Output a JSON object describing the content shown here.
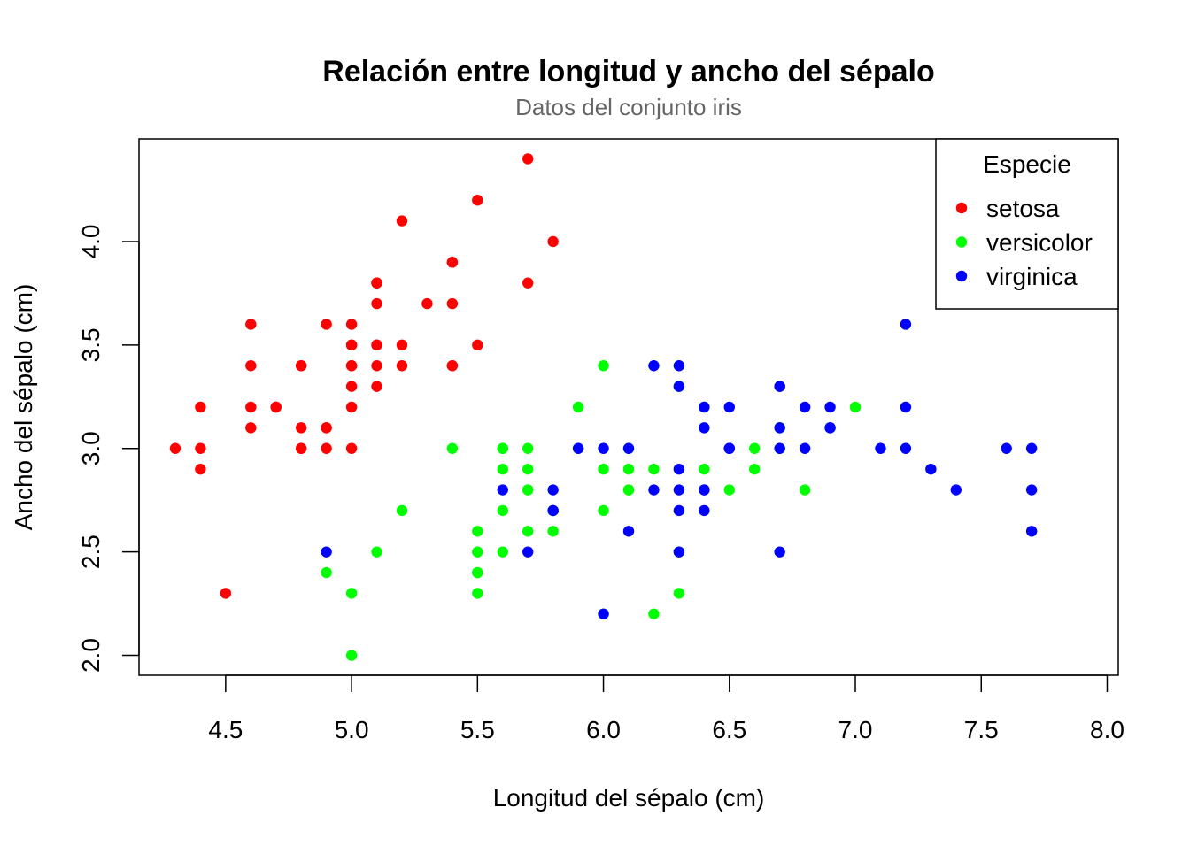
{
  "chart_data": {
    "type": "scatter",
    "title": "Relación entre longitud y ancho del sépalo",
    "subtitle": "Datos del conjunto iris",
    "xlabel": "Longitud del sépalo (cm)",
    "ylabel": "Ancho del sépalo (cm)",
    "xlim": [
      4.156,
      8.044
    ],
    "ylim": [
      1.904,
      4.496
    ],
    "xticks": [
      "4.5",
      "5.0",
      "5.5",
      "6.0",
      "6.5",
      "7.0",
      "7.5",
      "8.0"
    ],
    "yticks": [
      "2.0",
      "2.5",
      "3.0",
      "3.5",
      "4.0"
    ],
    "grid": false,
    "legend": {
      "title": "Especie",
      "placement": "top-right"
    },
    "series": [
      {
        "name": "setosa",
        "color": "#ff0000",
        "x": [
          5.1,
          4.9,
          4.7,
          4.6,
          5.0,
          5.4,
          4.6,
          5.0,
          4.4,
          4.9,
          5.4,
          4.8,
          4.8,
          4.3,
          5.8,
          5.7,
          5.4,
          5.1,
          5.7,
          5.1,
          5.4,
          5.1,
          4.6,
          5.1,
          4.8,
          5.0,
          5.0,
          5.2,
          5.2,
          4.7,
          4.8,
          5.4,
          5.2,
          5.5,
          4.9,
          5.0,
          5.5,
          4.9,
          4.4,
          5.1,
          5.0,
          4.5,
          4.4,
          5.0,
          5.1,
          4.8,
          5.1,
          4.6,
          5.3,
          5.0
        ],
        "y": [
          3.5,
          3.0,
          3.2,
          3.1,
          3.6,
          3.9,
          3.4,
          3.4,
          2.9,
          3.1,
          3.7,
          3.4,
          3.0,
          3.0,
          4.0,
          4.4,
          3.9,
          3.5,
          3.8,
          3.8,
          3.4,
          3.7,
          3.6,
          3.3,
          3.4,
          3.0,
          3.4,
          3.5,
          3.4,
          3.2,
          3.1,
          3.4,
          4.1,
          4.2,
          3.1,
          3.2,
          3.5,
          3.6,
          3.0,
          3.4,
          3.5,
          2.3,
          3.2,
          3.5,
          3.8,
          3.0,
          3.8,
          3.2,
          3.7,
          3.3
        ]
      },
      {
        "name": "versicolor",
        "color": "#00ff00",
        "x": [
          7.0,
          6.4,
          6.9,
          5.5,
          6.5,
          5.7,
          6.3,
          4.9,
          6.6,
          5.2,
          5.0,
          5.9,
          6.0,
          6.1,
          5.6,
          6.7,
          5.6,
          5.8,
          6.2,
          5.6,
          5.9,
          6.1,
          6.3,
          6.1,
          6.4,
          6.6,
          6.8,
          6.7,
          6.0,
          5.7,
          5.5,
          5.5,
          5.8,
          6.0,
          5.4,
          6.0,
          6.7,
          6.3,
          5.6,
          5.5,
          5.5,
          6.1,
          5.8,
          5.0,
          5.6,
          5.7,
          5.7,
          6.2,
          5.1,
          5.7
        ],
        "y": [
          3.2,
          3.2,
          3.1,
          2.3,
          2.8,
          2.8,
          3.3,
          2.4,
          2.9,
          2.7,
          2.0,
          3.0,
          2.2,
          2.9,
          2.9,
          3.1,
          3.0,
          2.7,
          2.2,
          2.5,
          3.2,
          2.8,
          2.5,
          2.8,
          2.9,
          3.0,
          2.8,
          3.0,
          2.9,
          2.6,
          2.4,
          2.4,
          2.7,
          2.7,
          3.0,
          3.4,
          3.1,
          2.3,
          3.0,
          2.5,
          2.6,
          3.0,
          2.6,
          2.3,
          2.7,
          3.0,
          2.9,
          2.9,
          2.5,
          2.8
        ]
      },
      {
        "name": "virginica",
        "color": "#0000ff",
        "x": [
          6.3,
          5.8,
          7.1,
          6.3,
          6.5,
          7.6,
          4.9,
          7.3,
          6.7,
          7.2,
          6.5,
          6.4,
          6.8,
          5.7,
          5.8,
          6.4,
          6.5,
          7.7,
          7.7,
          6.0,
          6.9,
          5.6,
          7.7,
          6.3,
          6.7,
          7.2,
          6.2,
          6.1,
          6.4,
          7.2,
          7.4,
          7.9,
          6.4,
          6.3,
          6.1,
          7.7,
          6.3,
          6.4,
          6.0,
          6.9,
          6.7,
          6.9,
          5.8,
          6.8,
          6.7,
          6.7,
          6.3,
          6.5,
          6.2,
          5.9
        ],
        "y": [
          3.3,
          2.7,
          3.0,
          2.9,
          3.0,
          3.0,
          2.5,
          2.9,
          2.5,
          3.6,
          3.2,
          2.7,
          3.0,
          2.5,
          2.8,
          3.2,
          3.0,
          3.8,
          2.6,
          2.2,
          3.2,
          2.8,
          2.8,
          2.7,
          3.3,
          3.2,
          2.8,
          3.0,
          2.8,
          3.0,
          2.8,
          3.8,
          2.8,
          2.8,
          2.6,
          3.0,
          3.4,
          3.1,
          3.0,
          3.1,
          3.1,
          3.1,
          2.7,
          3.2,
          3.3,
          3.0,
          2.5,
          3.0,
          3.4,
          3.0
        ]
      }
    ]
  }
}
